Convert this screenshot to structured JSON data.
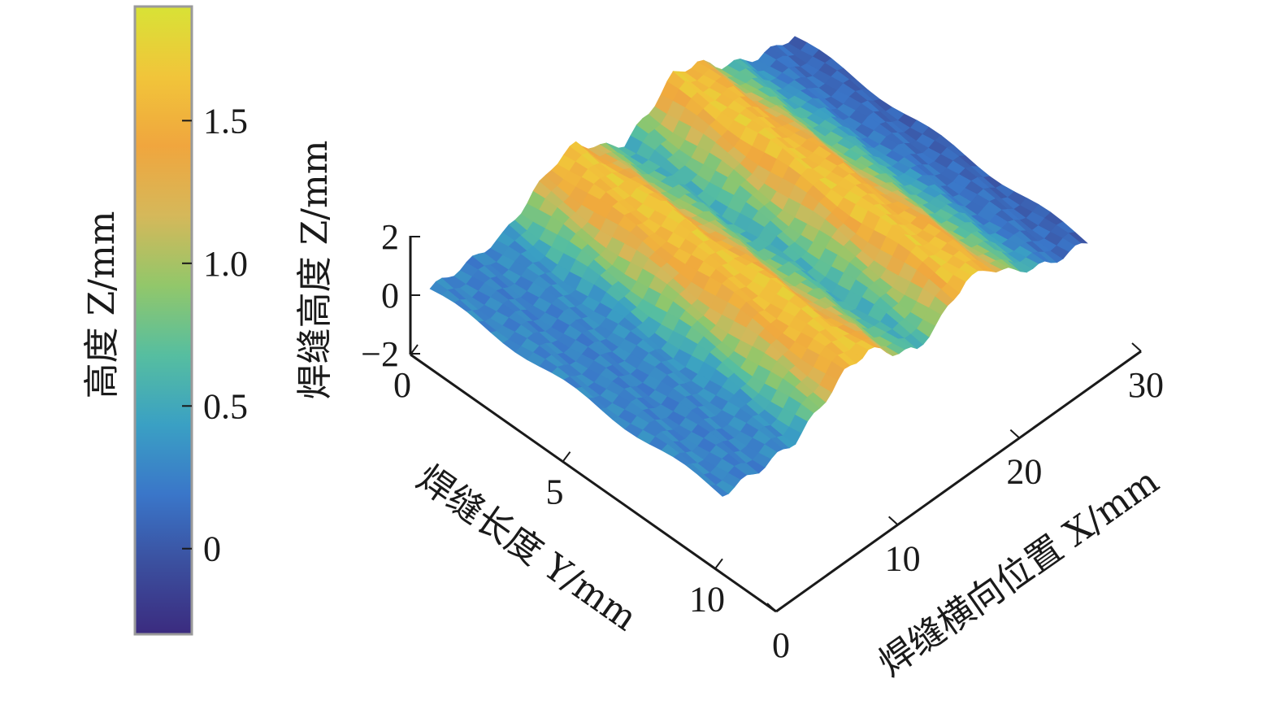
{
  "chart_data": {
    "type": "surface",
    "colorbar": {
      "label": "高度 Z/mm",
      "ticks": [
        1.5,
        1.0,
        0.5,
        0
      ],
      "tick_labels": [
        "1.5",
        "1.0",
        "0.5",
        "0"
      ],
      "range": [
        -0.3,
        1.9
      ],
      "colormap": [
        "#3b2b7f",
        "#3b4f9e",
        "#3a76c9",
        "#3aa0c4",
        "#56bea0",
        "#92c76a",
        "#d5b85a",
        "#f0a63e",
        "#f1c53a",
        "#d8e236"
      ]
    },
    "axes": {
      "z": {
        "label": "焊缝高度 Z/mm",
        "ticks": [
          2,
          0,
          -2
        ],
        "tick_labels": [
          "2",
          "0",
          "−2"
        ],
        "range": [
          -2,
          2
        ]
      },
      "y": {
        "label": "焊缝长度 Y/mm",
        "ticks": [
          0,
          5,
          10
        ],
        "tick_labels": [
          "0",
          "5",
          "10"
        ],
        "range": [
          0,
          12
        ]
      },
      "x": {
        "label": "焊缝横向位置 X/mm",
        "ticks": [
          0,
          10,
          20,
          30
        ],
        "tick_labels": [
          "0",
          "10",
          "20",
          "30"
        ],
        "range": [
          0,
          30
        ]
      }
    },
    "surface_profile": {
      "x": [
        0,
        3,
        6,
        8,
        10,
        12,
        14,
        16,
        18,
        20,
        22,
        24,
        27,
        30
      ],
      "z": [
        0.3,
        0.25,
        0.35,
        0.9,
        1.5,
        1.7,
        1.0,
        0.5,
        1.0,
        1.7,
        1.5,
        0.8,
        0.2,
        0.05
      ]
    }
  }
}
